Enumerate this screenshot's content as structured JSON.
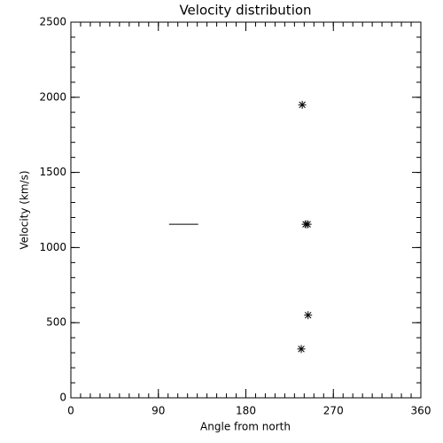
{
  "chart_data": {
    "type": "scatter",
    "title": "Velocity distribution",
    "x_label": "Angle from north",
    "y_label": "Velocity (km/s)",
    "x": [
      238,
      241.5,
      243.5,
      244,
      237
    ],
    "values": [
      1950,
      1155,
      1155,
      550,
      325
    ],
    "segment": {
      "x": [
        101,
        131
      ],
      "y": [
        1155,
        1155
      ]
    },
    "color": "#000000",
    "xlim": [
      0,
      360
    ],
    "xticks": [
      0,
      90,
      180,
      270,
      360
    ],
    "xminor": 10,
    "ylim": [
      0,
      2500
    ],
    "yticks": [
      0,
      500,
      1000,
      1500,
      2000,
      2500
    ],
    "yminor": 100,
    "grid": false
  }
}
